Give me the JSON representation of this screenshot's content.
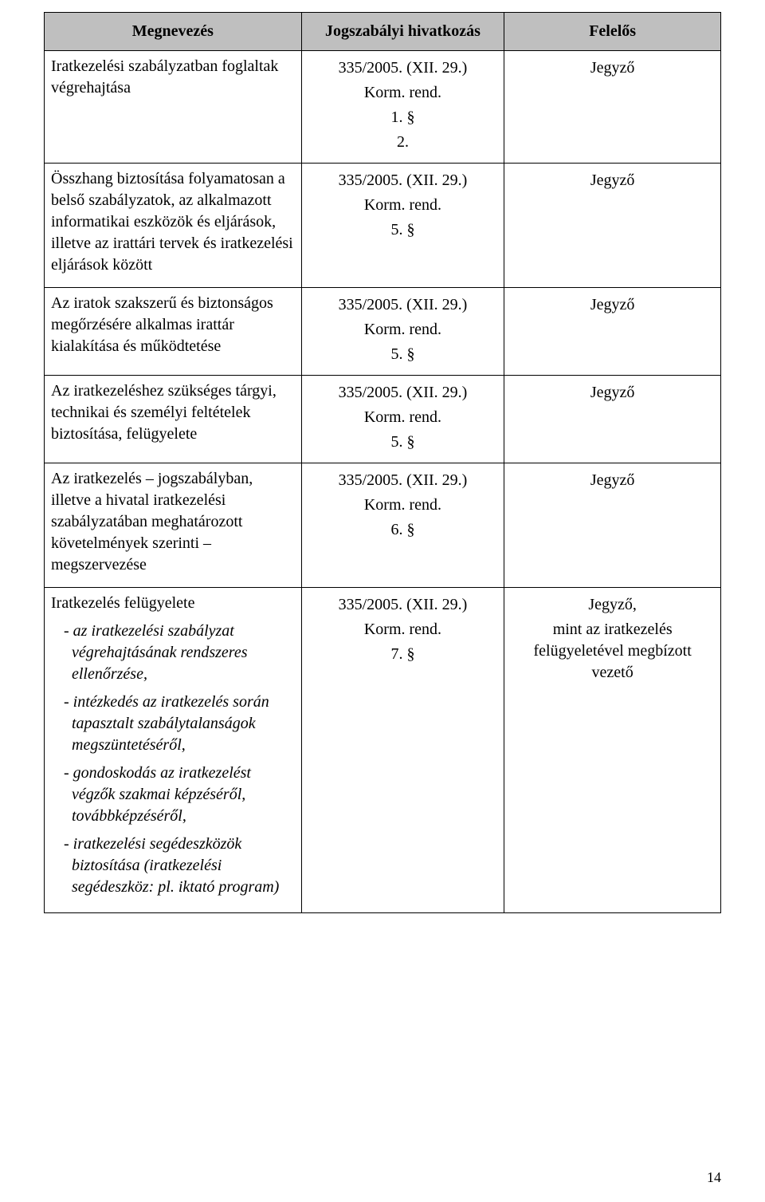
{
  "headers": {
    "c1": "Megnevezés",
    "c2": "Jogszabályi hivatkozás",
    "c3": "Felelős"
  },
  "rows": [
    {
      "name": "Iratkezelési szabályzatban foglaltak végrehajtása",
      "ref_line1": "335/2005. (XII. 29.)",
      "ref_line2": "Korm. rend.",
      "ref_line3": "1. §",
      "ref_line4": "2.",
      "responsible_line1": "Jegyző"
    },
    {
      "name": "Összhang biztosítása folyamatosan a belső szabályzatok, az alkalmazott informatikai eszközök és eljárások, illetve az irattári tervek és iratkezelési eljárások között",
      "ref_line1": "335/2005. (XII. 29.)",
      "ref_line2": "Korm. rend.",
      "ref_line3": "5. §",
      "responsible_line1": "Jegyző"
    },
    {
      "name": "Az iratok szakszerű és biztonságos megőrzésére alkalmas irattár kialakítása és működtetése",
      "ref_line1": "335/2005. (XII. 29.)",
      "ref_line2": "Korm. rend.",
      "ref_line3": "5. §",
      "responsible_line1": "Jegyző"
    },
    {
      "name": "Az iratkezeléshez szükséges tárgyi, technikai és személyi feltételek biztosítása, felügyelete",
      "ref_line1": "335/2005. (XII. 29.)",
      "ref_line2": "Korm. rend.",
      "ref_line3": "5. §",
      "responsible_line1": "Jegyző"
    },
    {
      "name": "Az iratkezelés – jogszabályban, illetve a hivatal iratkezelési szabályzatában meghatározott követelmények szerinti – megszervezése",
      "ref_line1": "335/2005. (XII. 29.)",
      "ref_line2": "Korm. rend.",
      "ref_line3": "6. §",
      "responsible_line1": "Jegyző"
    },
    {
      "name": "Iratkezelés felügyelete",
      "subitems": [
        "- az iratkezelési szabályzat végrehajtásának rendszeres ellenőrzése,",
        "- intézkedés az iratkezelés során tapasztalt szabálytalanságok megszüntetéséről,",
        "- gondoskodás az iratkezelést végzők szakmai képzéséről, továbbképzéséről,",
        "- iratkezelési segédeszközök biztosítása (iratkezelési segédeszköz: pl. iktató program)"
      ],
      "ref_line1": "335/2005. (XII. 29.)",
      "ref_line2": "Korm. rend.",
      "ref_line3": "7. §",
      "responsible_line1": "Jegyző,",
      "responsible_line2": "mint az iratkezelés felügyeletével megbízott vezető"
    }
  ],
  "page_number": "14"
}
